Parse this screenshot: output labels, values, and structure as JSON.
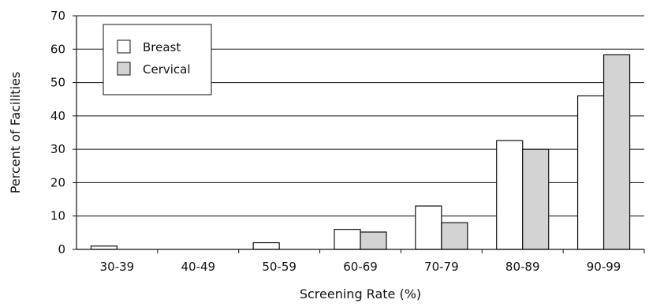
{
  "chart_data": {
    "type": "bar",
    "title": "",
    "xlabel": "Screening Rate (%)",
    "ylabel": "Percent of Facilities",
    "ylim": [
      0,
      70
    ],
    "yticks": [
      0,
      10,
      20,
      30,
      40,
      50,
      60,
      70
    ],
    "grid": true,
    "legend_position": "top-left",
    "categories": [
      "30-39",
      "40-49",
      "50-59",
      "60-69",
      "70-79",
      "80-89",
      "90-99"
    ],
    "series": [
      {
        "name": "Breast",
        "color": "#ffffff",
        "values": [
          1,
          0,
          2,
          6,
          13,
          32.6,
          46
        ]
      },
      {
        "name": "Cervical",
        "color": "#d3d3d3",
        "values": [
          0,
          0,
          0,
          5.2,
          8,
          30,
          58.3
        ]
      }
    ]
  }
}
